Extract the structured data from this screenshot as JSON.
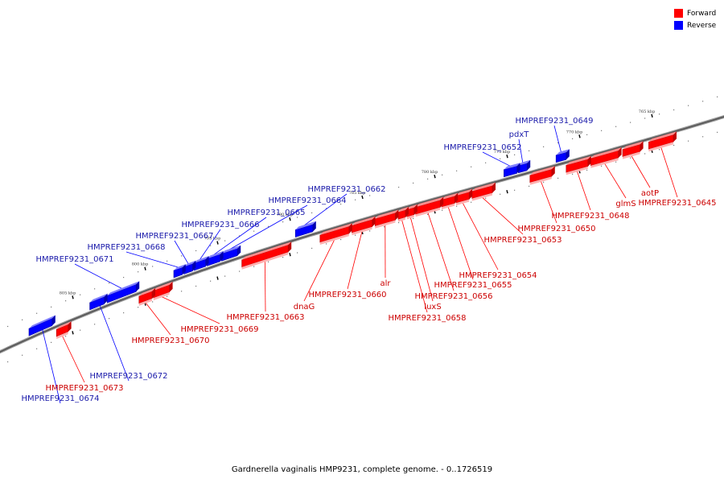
{
  "caption": "Gardnerella vaginalis HMP9231, complete genome. - 0..1726519",
  "legend": {
    "forward_label": "Forward",
    "reverse_label": "Reverse",
    "forward_color": "#ff0000",
    "reverse_color": "#0000ff"
  },
  "scale_labels": [
    {
      "text": "765 kbp",
      "kbp": 765
    },
    {
      "text": "770 kbp",
      "kbp": 770
    },
    {
      "text": "775 kbp",
      "kbp": 775
    },
    {
      "text": "780 kbp",
      "kbp": 780
    },
    {
      "text": "785 kbp",
      "kbp": 785
    },
    {
      "text": "790 kbp",
      "kbp": 790
    },
    {
      "text": "795 kbp",
      "kbp": 795
    },
    {
      "text": "800 kbp",
      "kbp": 800
    },
    {
      "text": "805 kbp",
      "kbp": 805
    }
  ],
  "genes": [
    {
      "label": "HMPREF9231_0645",
      "strand": "forward",
      "start_kbp": 763.5,
      "end_kbp": 765.2
    },
    {
      "label": "aotP",
      "strand": "forward",
      "start_kbp": 765.8,
      "end_kbp": 767.0
    },
    {
      "label": "glmS",
      "strand": "forward",
      "start_kbp": 767.3,
      "end_kbp": 769.2
    },
    {
      "label": "HMPREF9231_0648",
      "strand": "forward",
      "start_kbp": 769.4,
      "end_kbp": 770.9
    },
    {
      "label": "HMPREF9231_0649",
      "strand": "reverse",
      "start_kbp": 770.9,
      "end_kbp": 771.6
    },
    {
      "label": "HMPREF9231_0650",
      "strand": "forward",
      "start_kbp": 771.9,
      "end_kbp": 773.4
    },
    {
      "label": "pdxT",
      "strand": "reverse",
      "start_kbp": 773.6,
      "end_kbp": 774.2
    },
    {
      "label": "HMPREF9231_0652",
      "strand": "reverse",
      "start_kbp": 774.3,
      "end_kbp": 775.2
    },
    {
      "label": "HMPREF9231_0653",
      "strand": "forward",
      "start_kbp": 776.0,
      "end_kbp": 777.4
    },
    {
      "label": "HMPREF9231_0654",
      "strand": "forward",
      "start_kbp": 777.6,
      "end_kbp": 778.5
    },
    {
      "label": "HMPREF9231_0655",
      "strand": "forward",
      "start_kbp": 778.6,
      "end_kbp": 779.5
    },
    {
      "label": "HMPREF9231_0656",
      "strand": "forward",
      "start_kbp": 779.6,
      "end_kbp": 781.3
    },
    {
      "label": "luxS",
      "strand": "forward",
      "start_kbp": 781.4,
      "end_kbp": 781.9
    },
    {
      "label": "HMPREF9231_0658",
      "strand": "forward",
      "start_kbp": 782.0,
      "end_kbp": 782.5
    },
    {
      "label": "alr",
      "strand": "forward",
      "start_kbp": 782.7,
      "end_kbp": 784.1
    },
    {
      "label": "HMPREF9231_0660",
      "strand": "forward",
      "start_kbp": 784.3,
      "end_kbp": 785.7
    },
    {
      "label": "dnaG",
      "strand": "forward",
      "start_kbp": 785.9,
      "end_kbp": 787.9
    },
    {
      "label": "HMPREF9231_0662",
      "strand": "reverse",
      "start_kbp": 788.4,
      "end_kbp": 789.6
    },
    {
      "label": "HMPREF9231_0663",
      "strand": "forward",
      "start_kbp": 790.1,
      "end_kbp": 793.3
    },
    {
      "label": "HMPREF9231_0664",
      "strand": "reverse",
      "start_kbp": 793.6,
      "end_kbp": 794.7
    },
    {
      "label": "HMPREF9231_0665",
      "strand": "reverse",
      "start_kbp": 794.8,
      "end_kbp": 795.7
    },
    {
      "label": "HMPREF9231_0666",
      "strand": "reverse",
      "start_kbp": 795.8,
      "end_kbp": 796.6
    },
    {
      "label": "HMPREF9231_0667",
      "strand": "reverse",
      "start_kbp": 796.7,
      "end_kbp": 797.3
    },
    {
      "label": "HMPREF9231_0668",
      "strand": "reverse",
      "start_kbp": 797.4,
      "end_kbp": 798.0
    },
    {
      "label": "HMPREF9231_0669",
      "strand": "forward",
      "start_kbp": 798.3,
      "end_kbp": 799.4
    },
    {
      "label": "HMPREF9231_0670",
      "strand": "forward",
      "start_kbp": 799.5,
      "end_kbp": 800.4
    },
    {
      "label": "HMPREF9231_0671",
      "strand": "reverse",
      "start_kbp": 800.6,
      "end_kbp": 802.6
    },
    {
      "label": "HMPREF9231_0672",
      "strand": "reverse",
      "start_kbp": 802.8,
      "end_kbp": 803.8
    },
    {
      "label": "HMPREF9231_0673",
      "strand": "forward",
      "start_kbp": 805.3,
      "end_kbp": 806.1
    },
    {
      "label": "HMPREF9231_0674",
      "strand": "reverse",
      "start_kbp": 806.4,
      "end_kbp": 808.0
    }
  ]
}
